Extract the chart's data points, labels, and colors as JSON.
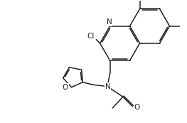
{
  "bg_color": "#ffffff",
  "line_color": "#222222",
  "line_width": 1.1,
  "font_size": 7.0,
  "figsize": [
    2.63,
    1.73
  ],
  "dpi": 100,
  "xlim": [
    0,
    10
  ],
  "ylim": [
    0,
    7
  ]
}
